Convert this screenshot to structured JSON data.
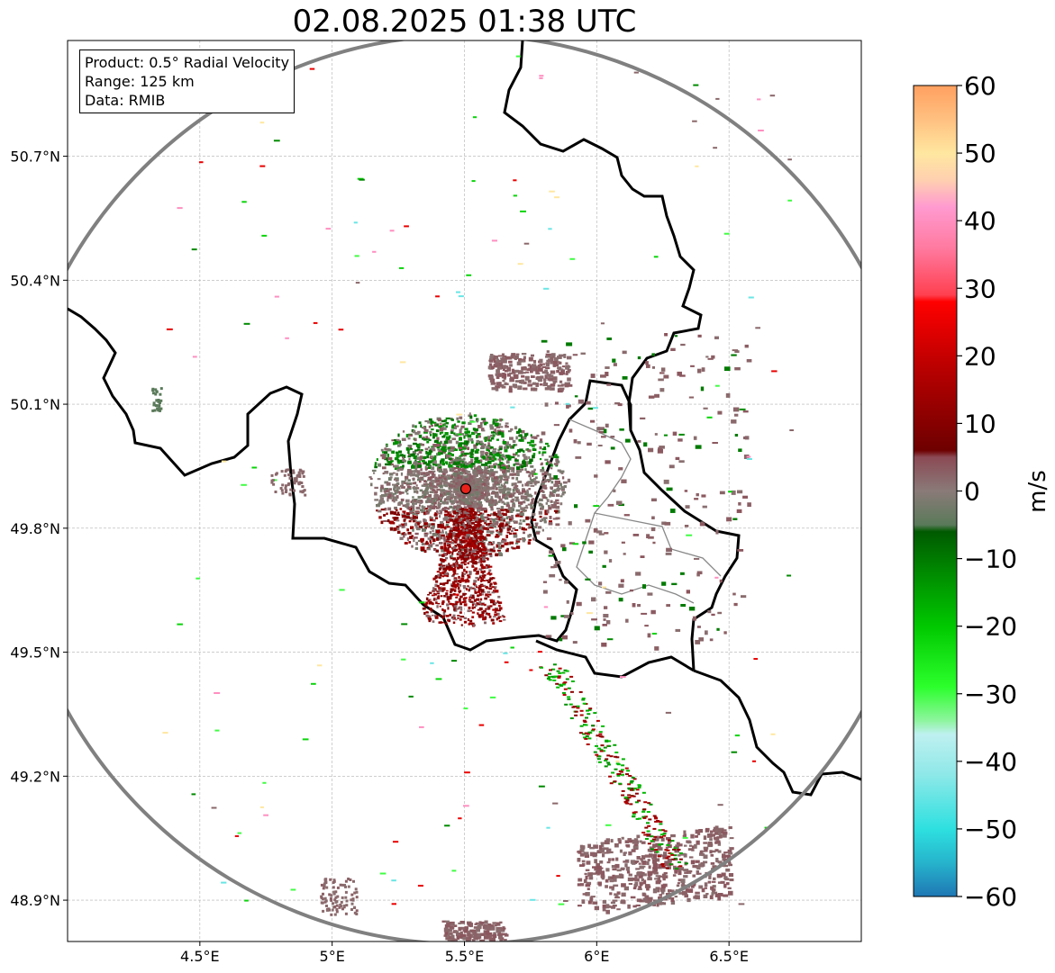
{
  "title": "02.08.2025 01:38 UTC",
  "info": {
    "product": "Product: 0.5° Radial Velocity",
    "range": "Range: 125 km",
    "data": "Data: RMIB"
  },
  "chart_data": {
    "type": "heatmap",
    "title": "02.08.2025 01:38 UTC",
    "xlabel": "",
    "ylabel": "",
    "x_ticks": [
      "4.5°E",
      "5°E",
      "5.5°E",
      "6°E",
      "6.5°E"
    ],
    "x_tick_values": [
      4.5,
      5.0,
      5.5,
      6.0,
      6.5
    ],
    "y_ticks": [
      "50.7°N",
      "50.4°N",
      "50.1°N",
      "49.8°N",
      "49.5°N",
      "49.2°N",
      "48.9°N"
    ],
    "y_tick_values": [
      50.7,
      50.4,
      50.1,
      49.8,
      49.5,
      49.2,
      48.9
    ],
    "xlim": [
      4.0,
      7.0
    ],
    "ylim": [
      48.8,
      50.98
    ],
    "grid": true,
    "radar_site": {
      "lon": 5.505,
      "lat": 49.915
    },
    "range_ring_km": 125,
    "colorbar": {
      "label": "m/s",
      "range": [
        -60,
        60
      ],
      "ticks": [
        "60",
        "50",
        "40",
        "30",
        "20",
        "10",
        "0",
        "−10",
        "−20",
        "−30",
        "−40",
        "−50",
        "−60"
      ],
      "tick_values": [
        60,
        50,
        40,
        30,
        20,
        10,
        0,
        -10,
        -20,
        -30,
        -40,
        -50,
        -60
      ],
      "stops": [
        {
          "v": -60,
          "color": "#1f77b4"
        },
        {
          "v": -55,
          "color": "#26b4cc"
        },
        {
          "v": -50,
          "color": "#2ee0e0"
        },
        {
          "v": -42,
          "color": "#8ee8e8"
        },
        {
          "v": -36,
          "color": "#bff0f0"
        },
        {
          "v": -34,
          "color": "#8ef59e"
        },
        {
          "v": -29,
          "color": "#2cff2c"
        },
        {
          "v": -20,
          "color": "#00c800"
        },
        {
          "v": -12,
          "color": "#008a00"
        },
        {
          "v": -6,
          "color": "#005a00"
        },
        {
          "v": -5,
          "color": "#5a7a5a"
        },
        {
          "v": 0,
          "color": "#8a7a78"
        },
        {
          "v": 5,
          "color": "#8b4a55"
        },
        {
          "v": 6,
          "color": "#6e0000"
        },
        {
          "v": 18,
          "color": "#b80000"
        },
        {
          "v": 28,
          "color": "#ff0000"
        },
        {
          "v": 29,
          "color": "#ff4050"
        },
        {
          "v": 36,
          "color": "#ff7aa0"
        },
        {
          "v": 42,
          "color": "#ff9ad0"
        },
        {
          "v": 46,
          "color": "#ffd0b0"
        },
        {
          "v": 50,
          "color": "#ffe7a0"
        },
        {
          "v": 55,
          "color": "#ffc080"
        },
        {
          "v": 60,
          "color": "#ffa060"
        }
      ]
    }
  }
}
